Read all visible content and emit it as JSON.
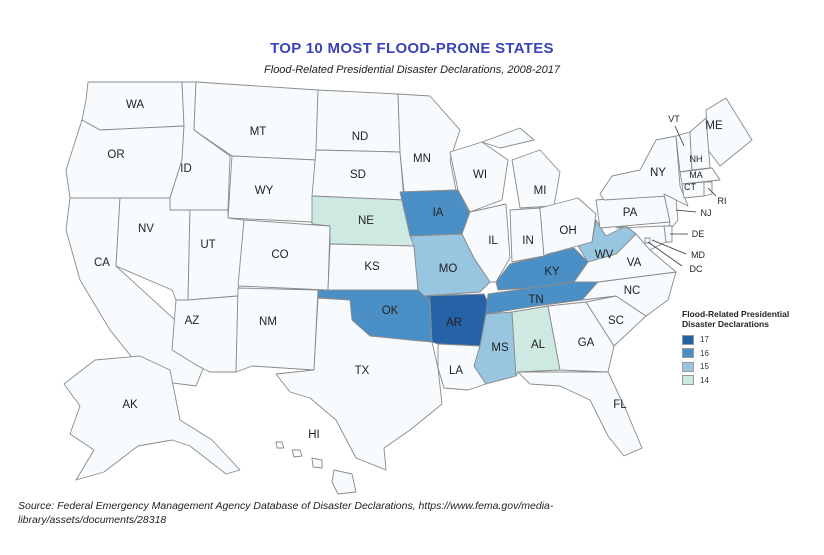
{
  "title": "TOP 10 MOST FLOOD-PRONE STATES",
  "subtitle": "Flood-Related Presidential Disaster Declarations, 2008-2017",
  "legend": {
    "title": "Flood-Related Presidential Disaster Declarations",
    "items": [
      {
        "label": "17",
        "color": "#2563a6"
      },
      {
        "label": "16",
        "color": "#4a90c7"
      },
      {
        "label": "15",
        "color": "#98c5e0"
      },
      {
        "label": "14",
        "color": "#cde9e2"
      }
    ]
  },
  "default_color": "#f7fbfd",
  "states": {
    "WA": null,
    "OR": null,
    "CA": null,
    "ID": null,
    "NV": null,
    "MT": null,
    "WY": null,
    "UT": null,
    "AZ": null,
    "CO": null,
    "NM": null,
    "ND": null,
    "SD": null,
    "NE": 14,
    "KS": null,
    "OK": 16,
    "TX": null,
    "MN": null,
    "IA": 16,
    "MO": 15,
    "AR": 17,
    "LA": null,
    "WI": null,
    "IL": null,
    "MI": null,
    "IN": null,
    "OH": null,
    "KY": 16,
    "TN": 16,
    "MS": 15,
    "AL": 14,
    "GA": null,
    "FL": null,
    "SC": null,
    "NC": null,
    "VA": null,
    "WV": 15,
    "PA": null,
    "NY": null,
    "ME": null,
    "VT": null,
    "NH": null,
    "MA": null,
    "CT": null,
    "RI": null,
    "NJ": null,
    "DE": null,
    "MD": null,
    "DC": null,
    "AK": null,
    "HI": null
  },
  "source": "Source: Federal Emergency Management Agency Database of Disaster Declarations, https://www.fema.gov/media-library/assets/documents/28318"
}
